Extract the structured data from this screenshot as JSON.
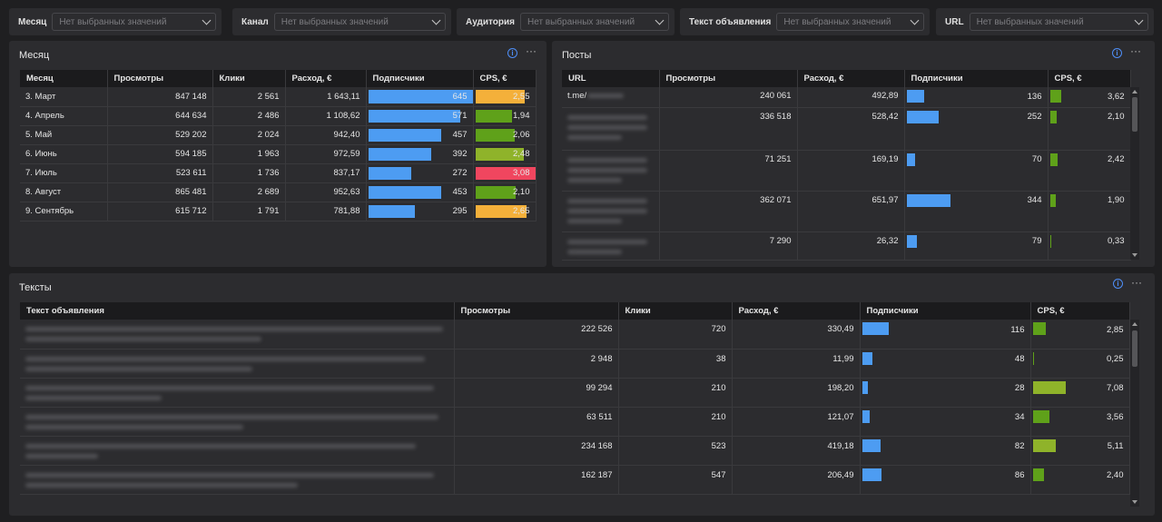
{
  "filters": [
    {
      "label": "Месяц",
      "placeholder": "Нет выбранных значений"
    },
    {
      "label": "Канал",
      "placeholder": "Нет выбранных значений"
    },
    {
      "label": "Аудитория",
      "placeholder": "Нет выбранных значений"
    },
    {
      "label": "Текст объявления",
      "placeholder": "Нет выбранных значений"
    },
    {
      "label": "URL",
      "placeholder": "Нет выбранных значений"
    }
  ],
  "colors": {
    "bar_blue": "#4d9cf2",
    "cps_green": "#5fa11a",
    "cps_lime": "#8fb32a",
    "cps_orange": "#f4b03a",
    "cps_red": "#f0465f"
  },
  "months": {
    "title": "Месяц",
    "headers": [
      "Месяц",
      "Просмотры",
      "Клики",
      "Расход, €",
      "Подписчики",
      "CPS, €"
    ],
    "max_subs": 645,
    "rows": [
      {
        "month": "3. Март",
        "views": "847 148",
        "clicks": "2 561",
        "spend": "1 643,11",
        "subs": "645",
        "subs_value": 645,
        "cps": "2,55",
        "cps_fill": 0.83,
        "cps_color": "#f4b03a"
      },
      {
        "month": "4. Апрель",
        "views": "644 634",
        "clicks": "2 486",
        "spend": "1 108,62",
        "subs": "571",
        "subs_value": 571,
        "cps": "1,94",
        "cps_fill": 0.63,
        "cps_color": "#5fa11a"
      },
      {
        "month": "5. Май",
        "views": "529 202",
        "clicks": "2 024",
        "spend": "942,40",
        "subs": "457",
        "subs_value": 457,
        "cps": "2,06",
        "cps_fill": 0.67,
        "cps_color": "#5fa11a"
      },
      {
        "month": "6. Июнь",
        "views": "594 185",
        "clicks": "1 963",
        "spend": "972,59",
        "subs": "392",
        "subs_value": 392,
        "cps": "2,48",
        "cps_fill": 0.81,
        "cps_color": "#8fb32a"
      },
      {
        "month": "7. Июль",
        "views": "523 611",
        "clicks": "1 736",
        "spend": "837,17",
        "subs": "272",
        "subs_value": 272,
        "cps": "3,08",
        "cps_fill": 1.0,
        "cps_color": "#f0465f"
      },
      {
        "month": "8. Август",
        "views": "865 481",
        "clicks": "2 689",
        "spend": "952,63",
        "subs": "453",
        "subs_value": 453,
        "cps": "2,10",
        "cps_fill": 0.68,
        "cps_color": "#5fa11a"
      },
      {
        "month": "9. Сентябрь",
        "views": "615 712",
        "clicks": "1 791",
        "spend": "781,88",
        "subs": "295",
        "subs_value": 295,
        "cps": "2,65",
        "cps_fill": 0.86,
        "cps_color": "#f4b03a"
      }
    ]
  },
  "posts": {
    "title": "Посты",
    "headers": [
      "URL",
      "Просмотры",
      "Расход, €",
      "Подписчики",
      "CPS, €"
    ],
    "rows": [
      {
        "url": "t.me/",
        "views": "240 061",
        "spend": "492,89",
        "subs": "136",
        "subs_fill": 0.4,
        "cps": "3,62",
        "cps_fill": 0.51,
        "lines": 1
      },
      {
        "url": "",
        "views": "336 518",
        "spend": "528,42",
        "subs": "252",
        "subs_fill": 0.73,
        "cps": "2,10",
        "cps_fill": 0.3,
        "lines": 3
      },
      {
        "url": "",
        "views": "71 251",
        "spend": "169,19",
        "subs": "70",
        "subs_fill": 0.2,
        "cps": "2,42",
        "cps_fill": 0.34,
        "lines": 3
      },
      {
        "url": "",
        "views": "362 071",
        "spend": "651,97",
        "subs": "344",
        "subs_fill": 1.0,
        "cps": "1,90",
        "cps_fill": 0.27,
        "lines": 3
      },
      {
        "url": "",
        "views": "7 290",
        "spend": "26,32",
        "subs": "79",
        "subs_fill": 0.23,
        "cps": "0,33",
        "cps_fill": 0.05,
        "lines": 2
      }
    ]
  },
  "texts": {
    "title": "Тексты",
    "headers": [
      "Текст объявления",
      "Просмотры",
      "Клики",
      "Расход, €",
      "Подписчики",
      "CPS, €"
    ],
    "rows": [
      {
        "views": "222 526",
        "clicks": "720",
        "spend": "330,49",
        "subs": "116",
        "subs_fill": 1.0,
        "cps": "2,85",
        "cps_fill": 0.4,
        "cps_color": "#5fa11a"
      },
      {
        "views": "2 948",
        "clicks": "38",
        "spend": "11,99",
        "subs": "48",
        "subs_fill": 0.41,
        "cps": "0,25",
        "cps_fill": 0.04,
        "cps_color": "#5fa11a"
      },
      {
        "views": "99 294",
        "clicks": "210",
        "spend": "198,20",
        "subs": "28",
        "subs_fill": 0.24,
        "cps": "7,08",
        "cps_fill": 1.0,
        "cps_color": "#8fb32a"
      },
      {
        "views": "63 511",
        "clicks": "210",
        "spend": "121,07",
        "subs": "34",
        "subs_fill": 0.29,
        "cps": "3,56",
        "cps_fill": 0.5,
        "cps_color": "#5fa11a"
      },
      {
        "views": "234 168",
        "clicks": "523",
        "spend": "419,18",
        "subs": "82",
        "subs_fill": 0.71,
        "cps": "5,11",
        "cps_fill": 0.72,
        "cps_color": "#8fb32a"
      },
      {
        "views": "162 187",
        "clicks": "547",
        "spend": "206,49",
        "subs": "86",
        "subs_fill": 0.74,
        "cps": "2,40",
        "cps_fill": 0.34,
        "cps_color": "#5fa11a"
      }
    ]
  }
}
